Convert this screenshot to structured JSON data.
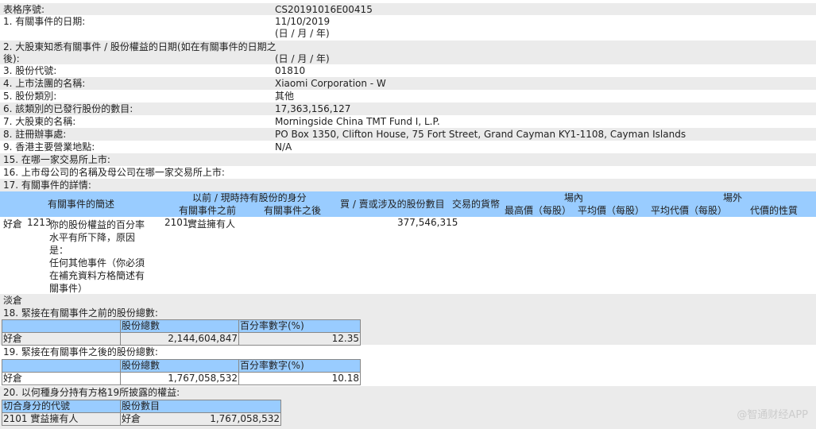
{
  "fields": [
    {
      "label": "表格序號:",
      "value": "CS20191016E00415"
    },
    {
      "label": "1. 有關事件的日期:",
      "value": "11/10/2019",
      "value2": "(日 / 月 / 年)"
    },
    {
      "label": "2. 大股東知悉有關事件 / 股份權益的日期(如在有關事件的日期之",
      "label2": "後):",
      "value2": "(日 / 月 / 年)"
    },
    {
      "label": "3. 股份代號:",
      "value": "01810"
    },
    {
      "label": "4. 上市法團的名稱:",
      "value": "Xiaomi Corporation - W"
    },
    {
      "label": "5. 股份類別:",
      "value": "其他"
    },
    {
      "label": "6. 該類別的已發行股份的數目:",
      "value": "17,363,156,127"
    },
    {
      "label": "7. 大股東的名稱:",
      "value": "Morningside China TMT Fund I, L.P."
    },
    {
      "label": "8. 註冊辦事處:",
      "value": "PO Box 1350, Clifton House, 75 Fort Street, Grand Cayman KY1-1108, Cayman Islands"
    },
    {
      "label": "9. 香港主要營業地點:",
      "value": "N/A"
    },
    {
      "label": "15. 在哪一家交易所上市:"
    },
    {
      "label": "16. 上市母公司的名稱及母公司在哪一家交易所上市:"
    },
    {
      "label": "17. 有關事件的詳情:"
    }
  ],
  "details": {
    "headers": {
      "desc": "有關事件的簡述",
      "capacity": "以前 / 現時持有股份的身分",
      "before": "有關事件之前",
      "after": "有關事件之後",
      "shares": "買 / 賣或涉及的股份數目",
      "currency": "交易的貨幣",
      "onex": "場內",
      "high": "最高價（每股）",
      "avg": "平均價（每股）",
      "offex": "場外",
      "avg_consid": "平均代價（每股）",
      "nature": "代價的性質"
    },
    "row": {
      "position": "好倉",
      "code": "1213",
      "desc": [
        "你的股份權益的百分率",
        "水平有所下降，原因",
        "是：",
        "任何其他事件（你必須",
        "在補充資料方格簡述有",
        "關事件）"
      ],
      "before_code": "2101",
      "before": "實益擁有人",
      "shares": "377,546,315"
    }
  },
  "short_label": "淡倉",
  "s18": {
    "title": "18. 緊接在有關事件之前的股份總數:",
    "col1": "股份總數",
    "col2": "百分率數字(%)",
    "pos": "好倉",
    "shares": "2,144,604,847",
    "pct": "12.35"
  },
  "s19": {
    "title": "19. 緊接在有關事件之後的股份總數:",
    "col1": "股份總數",
    "col2": "百分率數字(%)",
    "pos": "好倉",
    "shares": "1,767,058,532",
    "pct": "10.18"
  },
  "s20": {
    "title": "20. 以何種身分持有方格19所披露的權益:",
    "col1": "切合身分的代號",
    "col2": "股份數目",
    "code": "2101 實益擁有人",
    "pos": "好倉",
    "shares": "1,767,058,532"
  },
  "watermark": "@智通财经APP"
}
